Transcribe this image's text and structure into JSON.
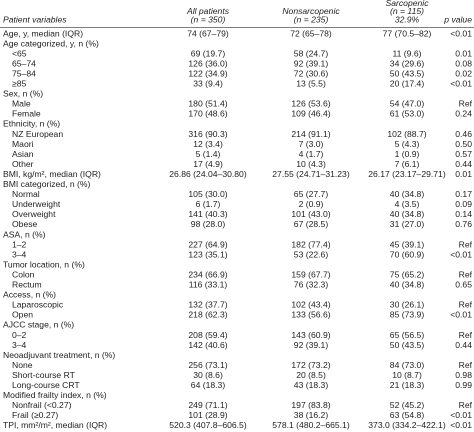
{
  "table": {
    "header": [
      [
        "Patient variables"
      ],
      [
        "All patients",
        "(n = 350)"
      ],
      [
        "Nonsarcopenic",
        "(n = 235)"
      ],
      [
        "Sarcopenic",
        "(n = 115)",
        "32.9%"
      ],
      [
        "p value"
      ]
    ],
    "body": [
      [
        "Age, y, median (IQR)",
        "74 (67–79)",
        "72 (65–78)",
        "77 (70.5–82)",
        "<0.01"
      ],
      {
        "label": "Age categorized, y, n (%)",
        "rows": [
          [
            "<65",
            "69 (19.7)",
            "58 (24.7)",
            "11 (9.6)",
            "0.01"
          ],
          [
            "65–74",
            "126 (36.0)",
            "92 (39.1)",
            "34 (29.6)",
            "0.08"
          ],
          [
            "75–84",
            "122 (34.9)",
            "72 (30.6)",
            "50 (43.5)",
            "0.02"
          ],
          [
            "≥85",
            "33 (9.4)",
            "13 (5.5)",
            "20 (17.4)",
            "<0.01"
          ]
        ]
      },
      {
        "label": "Sex, n (%)",
        "rows": [
          [
            "Male",
            "180 (51.4)",
            "126 (53.6)",
            "54 (47.0)",
            "Ref"
          ],
          [
            "Female",
            "170 (48.6)",
            "109 (46.4)",
            "61 (53.0)",
            "0.24"
          ]
        ]
      },
      {
        "label": "Ethnicity, n (%)",
        "rows": [
          [
            "NZ European",
            "316 (90.3)",
            "214 (91.1)",
            "102 (88.7)",
            "0.46"
          ],
          [
            "Maori",
            "12 (3.4)",
            "7 (3.0)",
            "5 (4.3)",
            "0.50"
          ],
          [
            "Asian",
            "5 (1.4)",
            "4 (1.7)",
            "1 (0.9)",
            "0.57"
          ],
          [
            "Other",
            "17 (4.9)",
            "10 (4.3)",
            "7 (6.1)",
            "0.44"
          ]
        ]
      },
      [
        "BMI, kg/m², median (IQR)",
        "26.86 (24.04–30.80)",
        "27.55 (24.71–31.23)",
        "26.17 (23.17–29.71)",
        "0.01"
      ],
      {
        "label": "BMI categorized, n (%)",
        "rows": [
          [
            "Normal",
            "105 (30.0)",
            "65 (27.7)",
            "40 (34.8)",
            "0.17"
          ],
          [
            "Underweight",
            "6 (1.7)",
            "2 (0.9)",
            "4 (3.5)",
            "0.09"
          ],
          [
            "Overweight",
            "141 (40.3)",
            "101 (43.0)",
            "40 (34.8)",
            "0.14"
          ],
          [
            "Obese",
            "98 (28.0)",
            "67 (28.5)",
            "31 (27.0)",
            "0.76"
          ]
        ]
      },
      {
        "label": "ASA, n (%)",
        "rows": [
          [
            "1–2",
            "227 (64.9)",
            "182 (77.4)",
            "45 (39.1)",
            "Ref"
          ],
          [
            "3–4",
            "123 (35.1)",
            "53 (22.6)",
            "70 (60.9)",
            "<0.01"
          ]
        ]
      },
      {
        "label": "Tumor location, n (%)",
        "rows": [
          [
            "Colon",
            "234 (66.9)",
            "159 (67.7)",
            "75 (65.2)",
            "Ref"
          ],
          [
            "Rectum",
            "116 (33.1)",
            "76 (32.3)",
            "40 (34.8)",
            "0.65"
          ]
        ]
      },
      {
        "label": "Access, n (%)",
        "rows": [
          [
            "Laparoscopic",
            "132 (37.7)",
            "102 (43.4)",
            "30 (26.1)",
            "Ref"
          ],
          [
            "Open",
            "218 (62.3)",
            "133 (56.6)",
            "85 (73.9)",
            "<0.01"
          ]
        ]
      },
      {
        "label": "AJCC stage, n (%)",
        "rows": [
          [
            "0–2",
            "208 (59.4)",
            "143 (60.9)",
            "65 (56.5)",
            "Ref"
          ],
          [
            "3–4",
            "142 (40.6)",
            "92 (39.1)",
            "50 (43.5)",
            "0.44"
          ]
        ]
      },
      {
        "label": "Neoadjuvant treatment, n (%)",
        "rows": [
          [
            "None",
            "256 (73.1)",
            "172 (73.2)",
            "84 (73.0)",
            "Ref"
          ],
          [
            "Short-course RT",
            "30 (8.6)",
            "20 (8.5)",
            "10 (8.7)",
            "0.98"
          ],
          [
            "Long-course CRT",
            "64 (18.3)",
            "43 (18.3)",
            "21 (18.3)",
            "0.99"
          ]
        ]
      },
      {
        "label": "Modified frailty index, n (%)",
        "rows": [
          [
            "Nonfrail (<0.27)",
            "249 (71.1)",
            "197 (83.8)",
            "52 (45.2)",
            "Ref"
          ],
          [
            "Frail (≥0.27)",
            "101 (28.9)",
            "38 (16.2)",
            "63 (54.8)",
            "<0.01"
          ]
        ]
      },
      [
        "TPI, mm²/m², median (IQR)",
        "520.3 (407.8–606.5)",
        "578.1 (480.2–665.1)",
        "373.0 (334.2–422.1)",
        "<0.01"
      ]
    ]
  }
}
